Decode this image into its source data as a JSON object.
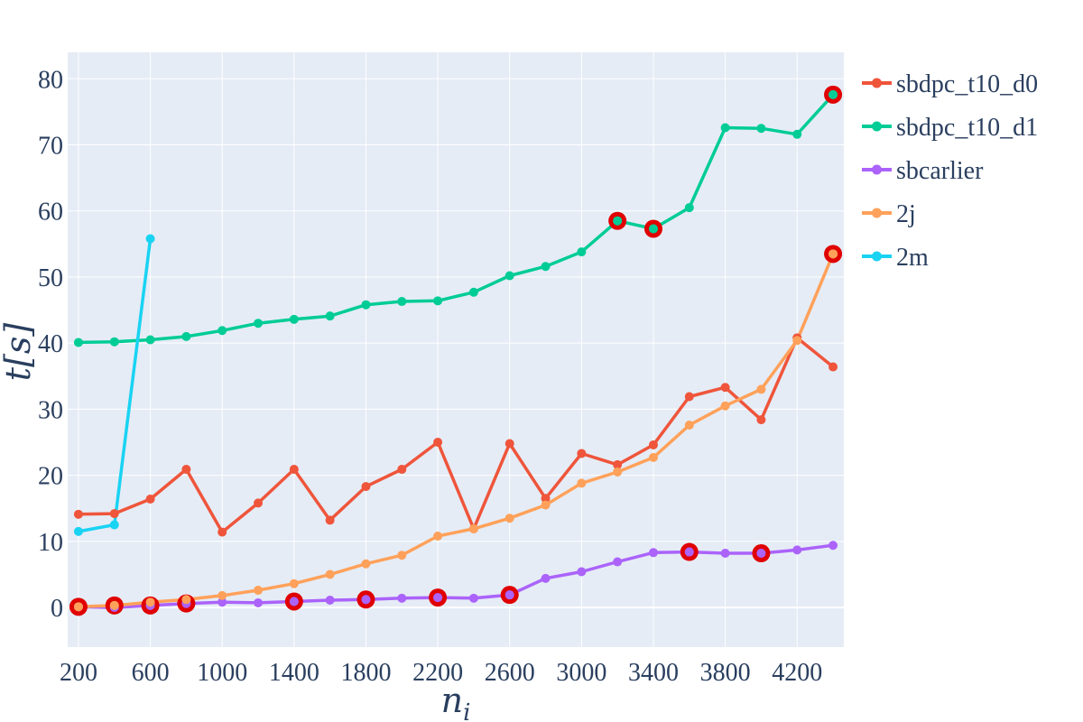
{
  "chart_data": {
    "type": "line",
    "xlabel": "n_i",
    "ylabel": "t[s]",
    "xlim": [
      140,
      4460
    ],
    "ylim": [
      -6,
      84
    ],
    "x_ticks": [
      200,
      600,
      1000,
      1400,
      1800,
      2200,
      2600,
      3000,
      3400,
      3800,
      4200
    ],
    "y_ticks": [
      0,
      10,
      20,
      30,
      40,
      50,
      60,
      70,
      80
    ],
    "grid": true,
    "legend_position": "right",
    "plot_background": "#E5ECF6",
    "highlight_color": "#E00000",
    "series": [
      {
        "name": "sbdpc_t10_d0",
        "color": "#EF553B",
        "x": [
          200,
          400,
          600,
          800,
          1000,
          1200,
          1400,
          1600,
          1800,
          2000,
          2200,
          2400,
          2600,
          2800,
          3000,
          3200,
          3400,
          3600,
          3800,
          4000,
          4200,
          4400
        ],
        "y": [
          14.1,
          14.2,
          16.4,
          20.9,
          11.4,
          15.8,
          20.9,
          13.2,
          18.3,
          20.9,
          25.0,
          11.9,
          24.8,
          16.5,
          23.3,
          21.6,
          24.6,
          31.9,
          33.3,
          28.4,
          40.8,
          36.4
        ]
      },
      {
        "name": "sbdpc_t10_d1",
        "color": "#00CC96",
        "x": [
          200,
          400,
          600,
          800,
          1000,
          1200,
          1400,
          1600,
          1800,
          2000,
          2200,
          2400,
          2600,
          2800,
          3000,
          3200,
          3400,
          3600,
          3800,
          4000,
          4200,
          4400
        ],
        "y": [
          40.1,
          40.2,
          40.5,
          41.0,
          41.9,
          43.0,
          43.6,
          44.1,
          45.8,
          46.3,
          46.4,
          47.7,
          50.2,
          51.6,
          53.8,
          58.5,
          57.3,
          60.5,
          72.6,
          72.5,
          71.6,
          77.6
        ]
      },
      {
        "name": "sbcarlier",
        "color": "#AB63FA",
        "x": [
          200,
          400,
          600,
          800,
          1000,
          1200,
          1400,
          1600,
          1800,
          2000,
          2200,
          2400,
          2600,
          2800,
          3000,
          3200,
          3400,
          3600,
          3800,
          4000,
          4200,
          4400
        ],
        "y": [
          0.1,
          0.0,
          0.3,
          0.6,
          0.8,
          0.7,
          0.9,
          1.1,
          1.2,
          1.4,
          1.5,
          1.4,
          1.9,
          4.4,
          5.4,
          6.9,
          8.3,
          8.4,
          8.2,
          8.2,
          8.7,
          9.4
        ]
      },
      {
        "name": "2j",
        "color": "#FFA15A",
        "x": [
          200,
          400,
          600,
          800,
          1000,
          1200,
          1400,
          1600,
          1800,
          2000,
          2200,
          2400,
          2600,
          2800,
          3000,
          3200,
          3400,
          3600,
          3800,
          4000,
          4200,
          4400
        ],
        "y": [
          0.1,
          0.3,
          0.8,
          1.2,
          1.8,
          2.6,
          3.6,
          5.0,
          6.6,
          7.9,
          10.8,
          11.9,
          13.5,
          15.5,
          18.8,
          20.5,
          22.7,
          27.6,
          30.5,
          33.0,
          40.4,
          53.5
        ]
      },
      {
        "name": "2m",
        "color": "#19D3F3",
        "x": [
          200,
          400,
          600
        ],
        "y": [
          11.5,
          12.5,
          55.8
        ]
      }
    ],
    "highlighted_points": [
      {
        "series": "2j",
        "x": 200,
        "y": 0.1
      },
      {
        "series": "2j",
        "x": 400,
        "y": 0.3
      },
      {
        "series": "sbcarlier",
        "x": 600,
        "y": 0.3
      },
      {
        "series": "sbcarlier",
        "x": 800,
        "y": 0.6
      },
      {
        "series": "sbcarlier",
        "x": 1400,
        "y": 0.9
      },
      {
        "series": "sbcarlier",
        "x": 1800,
        "y": 1.2
      },
      {
        "series": "sbcarlier",
        "x": 2200,
        "y": 1.5
      },
      {
        "series": "sbcarlier",
        "x": 2600,
        "y": 1.9
      },
      {
        "series": "sbdpc_t10_d1",
        "x": 3200,
        "y": 58.5
      },
      {
        "series": "sbdpc_t10_d1",
        "x": 3400,
        "y": 57.3
      },
      {
        "series": "sbcarlier",
        "x": 3600,
        "y": 8.4
      },
      {
        "series": "sbcarlier",
        "x": 4000,
        "y": 8.2
      },
      {
        "series": "sbdpc_t10_d1",
        "x": 4400,
        "y": 77.6
      },
      {
        "series": "2j",
        "x": 4400,
        "y": 53.5
      }
    ]
  }
}
